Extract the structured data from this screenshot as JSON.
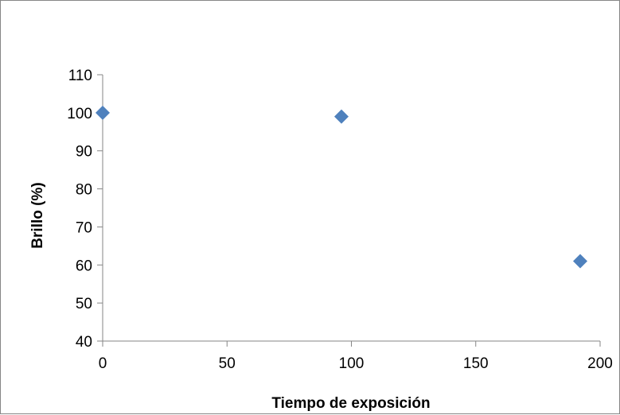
{
  "chart_data": {
    "type": "scatter",
    "title": "",
    "xlabel": "Tiempo de exposición",
    "ylabel": "Brillo (%)",
    "xlim": [
      0,
      200
    ],
    "ylim": [
      40,
      110
    ],
    "x_ticks": [
      0,
      50,
      100,
      150,
      200
    ],
    "y_ticks": [
      40,
      50,
      60,
      70,
      80,
      90,
      100,
      110
    ],
    "grid": false,
    "legend": "none",
    "marker": "diamond",
    "series": [
      {
        "color": "#4F81BD",
        "points": [
          {
            "x": 0,
            "y": 100
          },
          {
            "x": 96,
            "y": 99
          },
          {
            "x": 192,
            "y": 61
          }
        ]
      }
    ]
  }
}
